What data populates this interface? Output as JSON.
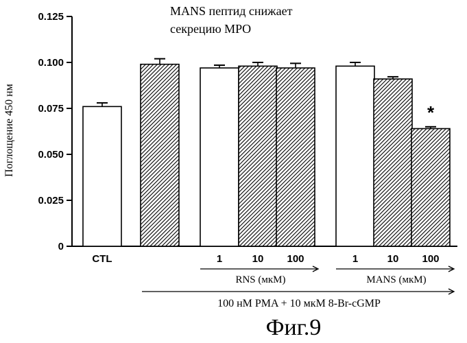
{
  "chart_data": {
    "type": "bar",
    "title": "MANS пептид снижает секрецию MPO",
    "title_lines": [
      "MANS пептид снижает",
      "секрецию MPO"
    ],
    "ylabel": "Поглощение 450 нм",
    "ylim": [
      0,
      0.125
    ],
    "yticks": [
      "0",
      "0.025",
      "0.050",
      "0.075",
      "0.100",
      "0.125"
    ],
    "ytick_values": [
      0,
      0.025,
      0.05,
      0.075,
      0.1,
      0.125
    ],
    "bars": [
      {
        "label": "CTL",
        "value": 0.076,
        "error": 0.002,
        "fill": "open",
        "star": ""
      },
      {
        "label": "",
        "value": 0.099,
        "error": 0.003,
        "fill": "hatched",
        "star": ""
      },
      {
        "label": "1",
        "value": 0.097,
        "error": 0.0015,
        "fill": "open",
        "star": ""
      },
      {
        "label": "10",
        "value": 0.098,
        "error": 0.002,
        "fill": "hatched",
        "star": ""
      },
      {
        "label": "100",
        "value": 0.097,
        "error": 0.0025,
        "fill": "hatched",
        "star": ""
      },
      {
        "label": "1",
        "value": 0.098,
        "error": 0.002,
        "fill": "open",
        "star": ""
      },
      {
        "label": "10",
        "value": 0.091,
        "error": 0.0012,
        "fill": "hatched",
        "star": ""
      },
      {
        "label": "100",
        "value": 0.064,
        "error": 0.001,
        "fill": "hatched",
        "star": "*"
      }
    ],
    "groups": [
      {
        "label": "RNS (мкМ)"
      },
      {
        "label": "MANS (мкМ)"
      }
    ],
    "treatment_label": "100 нМ PMA + 10 мкМ 8-Br-cGMP",
    "figure_caption": "Фиг.9",
    "grid": false,
    "legend": "none"
  }
}
